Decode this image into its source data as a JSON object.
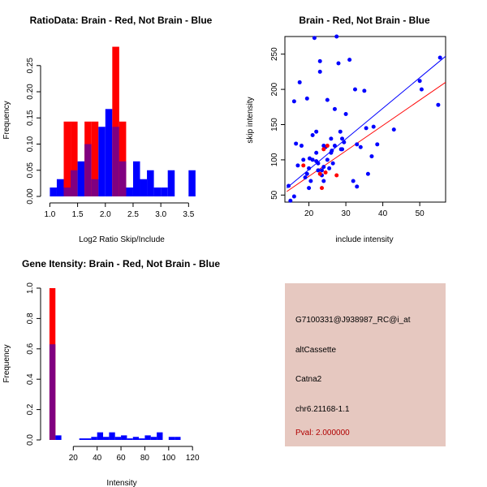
{
  "colors": {
    "brain": "#ff0000",
    "not_brain": "#0000ff",
    "overlap": "#800080",
    "info_bg": "#e6c8c0",
    "pval": "#b00000"
  },
  "chart_data": [
    {
      "type": "bar",
      "title": "RatioData: Brain - Red, Not Brain - Blue",
      "xlabel": "Log2 Ratio Skip/Include",
      "ylabel": "Frequency",
      "xlim": [
        0.95,
        3.7
      ],
      "ylim": [
        0,
        0.29
      ],
      "xticks": [
        1.0,
        1.5,
        2.0,
        2.5,
        3.0,
        3.5
      ],
      "xtick_labels": [
        "1.0",
        "1.5",
        "2.0",
        "2.5",
        "3.0",
        "3.5"
      ],
      "yticks": [
        0.0,
        0.05,
        0.1,
        0.15,
        0.2,
        0.25
      ],
      "ytick_labels": [
        "0.00",
        "0.05",
        "0.10",
        "0.15",
        "0.20",
        "0.25"
      ],
      "bin_width": 0.125,
      "series": [
        {
          "name": "Not Brain",
          "color": "blue",
          "bins": [
            [
              1.0,
              0.017
            ],
            [
              1.125,
              0.033
            ],
            [
              1.25,
              0.017
            ],
            [
              1.375,
              0.05
            ],
            [
              1.5,
              0.067
            ],
            [
              1.625,
              0.1
            ],
            [
              1.75,
              0.033
            ],
            [
              1.875,
              0.133
            ],
            [
              2.0,
              0.167
            ],
            [
              2.125,
              0.133
            ],
            [
              2.25,
              0.067
            ],
            [
              2.375,
              0.017
            ],
            [
              2.5,
              0.067
            ],
            [
              2.625,
              0.033
            ],
            [
              2.75,
              0.05
            ],
            [
              2.875,
              0.017
            ],
            [
              3.0,
              0.017
            ],
            [
              3.125,
              0.05
            ],
            [
              3.5,
              0.05
            ]
          ]
        },
        {
          "name": "Brain",
          "color": "red",
          "bins": [
            [
              1.25,
              0.143
            ],
            [
              1.375,
              0.143
            ],
            [
              1.625,
              0.143
            ],
            [
              1.75,
              0.143
            ],
            [
              2.125,
              0.286
            ],
            [
              2.25,
              0.143
            ]
          ]
        }
      ]
    },
    {
      "type": "scatter",
      "title": "Brain - Red, Not Brain - Blue",
      "xlabel": "include intensity",
      "ylabel": "skip intensity",
      "xlim": [
        13.5,
        57
      ],
      "ylim": [
        40,
        275
      ],
      "xticks": [
        20,
        30,
        40,
        50
      ],
      "xtick_labels": [
        "20",
        "30",
        "40",
        "50"
      ],
      "yticks": [
        50,
        100,
        150,
        200,
        250
      ],
      "ytick_labels": [
        "50",
        "100",
        "150",
        "200",
        "250"
      ],
      "series": [
        {
          "name": "Not Brain",
          "color": "blue",
          "points": [
            [
              15,
              42
            ],
            [
              16,
              183
            ],
            [
              16.5,
              123
            ],
            [
              17,
              92
            ],
            [
              17.5,
              210
            ],
            [
              18,
              120
            ],
            [
              18.5,
              100
            ],
            [
              19,
              75
            ],
            [
              19.5,
              80
            ],
            [
              19.5,
              187
            ],
            [
              20,
              88
            ],
            [
              20.2,
              102
            ],
            [
              20.5,
              70
            ],
            [
              21,
              100
            ],
            [
              21,
              135
            ],
            [
              21.5,
              273
            ],
            [
              22,
              98
            ],
            [
              22,
              140
            ],
            [
              22.5,
              95
            ],
            [
              22.5,
              85
            ],
            [
              23,
              240
            ],
            [
              23,
              225
            ],
            [
              23.5,
              78
            ],
            [
              23.5,
              85
            ],
            [
              24,
              90
            ],
            [
              24,
              70
            ],
            [
              24.5,
              118
            ],
            [
              25,
              185
            ],
            [
              25,
              100
            ],
            [
              25.5,
              88
            ],
            [
              26,
              130
            ],
            [
              26.2,
              113
            ],
            [
              26.5,
              95
            ],
            [
              27,
              120
            ],
            [
              27,
              172
            ],
            [
              27.5,
              275
            ],
            [
              28,
              237
            ],
            [
              28.5,
              140
            ],
            [
              28.7,
              115
            ],
            [
              29,
              130
            ],
            [
              29.5,
              125
            ],
            [
              30,
              165
            ],
            [
              31,
              242
            ],
            [
              32,
              70
            ],
            [
              32.5,
              200
            ],
            [
              33,
              122
            ],
            [
              34,
              118
            ],
            [
              35,
              198
            ],
            [
              35.5,
              145
            ],
            [
              36,
              80
            ],
            [
              37,
              105
            ],
            [
              37.5,
              147
            ],
            [
              38.5,
              122
            ],
            [
              43,
              143
            ],
            [
              50,
              212
            ],
            [
              50.5,
              200
            ],
            [
              55,
              178
            ],
            [
              55.5,
              245
            ],
            [
              14.5,
              63
            ],
            [
              16,
              48
            ],
            [
              20,
              60
            ],
            [
              22,
              110
            ],
            [
              24,
              120
            ],
            [
              26,
              110
            ],
            [
              29,
              115
            ],
            [
              33,
              62
            ]
          ]
        },
        {
          "name": "Brain",
          "color": "red",
          "points": [
            [
              18.5,
              92
            ],
            [
              23,
              80
            ],
            [
              23.5,
              60
            ],
            [
              24,
              115
            ],
            [
              24.5,
              82
            ],
            [
              25,
              120
            ],
            [
              27.5,
              78
            ]
          ]
        }
      ],
      "fit_lines": [
        {
          "series": "Not Brain",
          "color": "blue",
          "from": [
            14,
            60
          ],
          "to": [
            57,
            247
          ]
        },
        {
          "series": "Brain",
          "color": "red",
          "from": [
            14,
            55
          ],
          "to": [
            57,
            210
          ]
        }
      ]
    },
    {
      "type": "bar",
      "title": "Gene Itensity: Brain - Red, Not Brain - Blue",
      "xlabel": "Intensity",
      "ylabel": "Frequency",
      "xlim": [
        -2,
        126
      ],
      "ylim": [
        0,
        1.0
      ],
      "xticks": [
        20,
        40,
        60,
        80,
        100,
        120
      ],
      "xtick_labels": [
        "20",
        "40",
        "60",
        "80",
        "100",
        "120"
      ],
      "yticks": [
        0.0,
        0.2,
        0.4,
        0.6,
        0.8,
        1.0
      ],
      "ytick_labels": [
        "0.0",
        "0.2",
        "0.4",
        "0.6",
        "0.8",
        "1.0"
      ],
      "bin_width": 5,
      "series": [
        {
          "name": "Not Brain",
          "color": "blue",
          "bins": [
            [
              0,
              0.63
            ],
            [
              5,
              0.03
            ],
            [
              25,
              0.01
            ],
            [
              30,
              0.01
            ],
            [
              35,
              0.02
            ],
            [
              40,
              0.05
            ],
            [
              45,
              0.02
            ],
            [
              50,
              0.05
            ],
            [
              55,
              0.02
            ],
            [
              60,
              0.03
            ],
            [
              65,
              0.01
            ],
            [
              70,
              0.02
            ],
            [
              75,
              0.01
            ],
            [
              80,
              0.03
            ],
            [
              85,
              0.02
            ],
            [
              90,
              0.05
            ],
            [
              100,
              0.02
            ],
            [
              105,
              0.02
            ]
          ]
        },
        {
          "name": "Brain",
          "color": "red",
          "bins": [
            [
              0,
              1.0
            ]
          ]
        }
      ]
    }
  ],
  "info_panel": {
    "probe_id": "G7100331@J938987_RC@i_at",
    "event_type": "altCassette",
    "gene": "Catna2",
    "location": "chr6.21168-1.1",
    "pval": "Pval: 2.000000"
  }
}
